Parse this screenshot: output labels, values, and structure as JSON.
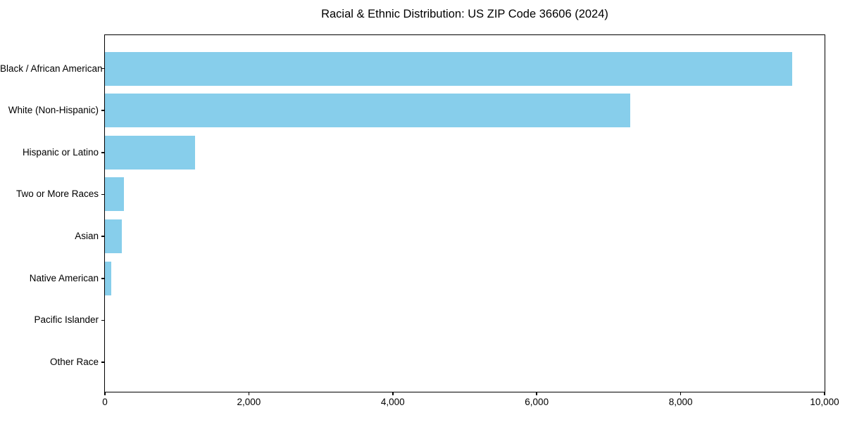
{
  "figure": {
    "background": "#ffffff"
  },
  "chart_data": {
    "type": "bar",
    "orientation": "horizontal",
    "title": "Racial & Ethnic Distribution: US ZIP Code 36606 (2024)",
    "categories": [
      "Black / African American",
      "White (Non-Hispanic)",
      "Hispanic or Latino",
      "Two or More Races",
      "Asian",
      "Native American",
      "Pacific Islander",
      "Other Race"
    ],
    "values": [
      9550,
      7300,
      1250,
      265,
      230,
      90,
      0,
      0
    ],
    "xlabel": "",
    "ylabel": "",
    "xlim": [
      0,
      10000
    ],
    "xticks": [
      0,
      2000,
      4000,
      6000,
      8000,
      10000
    ],
    "xtick_labels": [
      "0",
      "2,000",
      "4,000",
      "6,000",
      "8,000",
      "10,000"
    ],
    "bar_color": "#87CEEB",
    "axis_color": "#000000",
    "background": "#ffffff",
    "grid": false,
    "legend": null
  }
}
